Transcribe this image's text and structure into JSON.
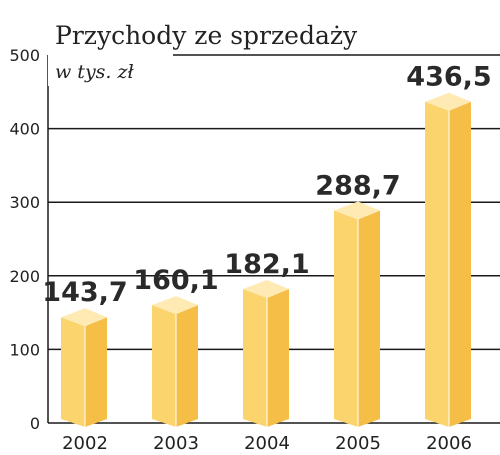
{
  "chart_data": {
    "type": "bar",
    "title": "Przychody ze sprzedaży",
    "subtitle": "w tys. zł",
    "categories": [
      "2002",
      "2003",
      "2004",
      "2005",
      "2006"
    ],
    "values": [
      143.7,
      160.1,
      182.1,
      288.7,
      436.5
    ],
    "value_labels": [
      "143,7",
      "160,1",
      "182,1",
      "288,7",
      "436,5"
    ],
    "yticks": [
      "0",
      "100",
      "200",
      "300",
      "400",
      "500"
    ],
    "ylim": [
      0,
      500
    ],
    "grid": true,
    "xlabel": "",
    "ylabel": "",
    "colors": {
      "front": "#fcd46e",
      "side": "#f4be47",
      "top": "#feeab2",
      "edge": "#ffffff",
      "grid": "#1a1a1a"
    }
  }
}
